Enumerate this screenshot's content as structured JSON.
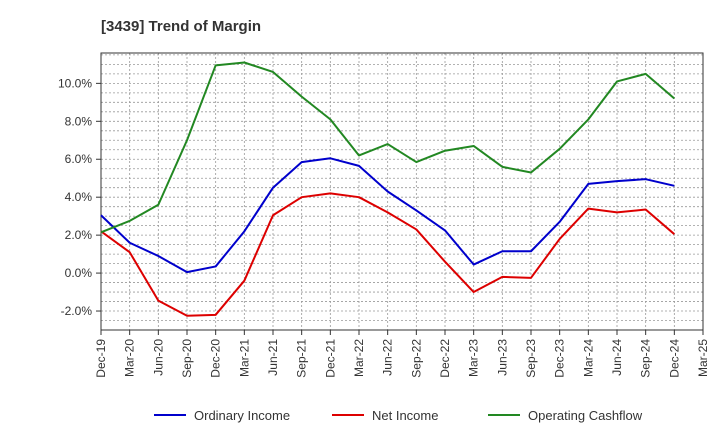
{
  "chart_data": {
    "type": "line",
    "title": "[3439]  Trend of Margin",
    "xlabel": "",
    "ylabel": "",
    "x": [
      "Dec-19",
      "Mar-20",
      "Jun-20",
      "Sep-20",
      "Dec-20",
      "Mar-21",
      "Jun-21",
      "Sep-21",
      "Dec-21",
      "Mar-22",
      "Jun-22",
      "Sep-22",
      "Dec-22",
      "Mar-23",
      "Jun-23",
      "Sep-23",
      "Dec-23",
      "Mar-24",
      "Jun-24",
      "Sep-24",
      "Dec-24",
      "Mar-25"
    ],
    "y_ticks": [
      "-2.0%",
      "0.0%",
      "2.0%",
      "4.0%",
      "6.0%",
      "8.0%",
      "10.0%"
    ],
    "ylim": [
      -3.0,
      11.6
    ],
    "grid": true,
    "legend_position": "bottom",
    "series": [
      {
        "name": "Ordinary Income",
        "color": "#0000cc",
        "values": [
          3.05,
          1.6,
          0.9,
          0.05,
          0.35,
          2.2,
          4.5,
          5.85,
          6.05,
          5.65,
          4.3,
          3.3,
          2.25,
          0.45,
          1.15,
          1.15,
          2.7,
          4.7,
          4.85,
          4.95,
          4.6,
          null
        ]
      },
      {
        "name": "Net Income",
        "color": "#dd0000",
        "values": [
          2.2,
          1.1,
          -1.45,
          -2.25,
          -2.2,
          -0.4,
          3.05,
          4.0,
          4.2,
          4.0,
          3.2,
          2.3,
          0.6,
          -1.0,
          -0.2,
          -0.25,
          1.8,
          3.4,
          3.2,
          3.35,
          2.05,
          null
        ]
      },
      {
        "name": "Operating Cashflow",
        "color": "#228822",
        "values": [
          2.15,
          2.75,
          3.6,
          7.0,
          10.95,
          11.1,
          10.6,
          9.3,
          8.1,
          6.2,
          6.8,
          5.85,
          6.45,
          6.7,
          5.6,
          5.3,
          6.55,
          8.1,
          10.1,
          10.5,
          9.2,
          null
        ]
      }
    ]
  }
}
